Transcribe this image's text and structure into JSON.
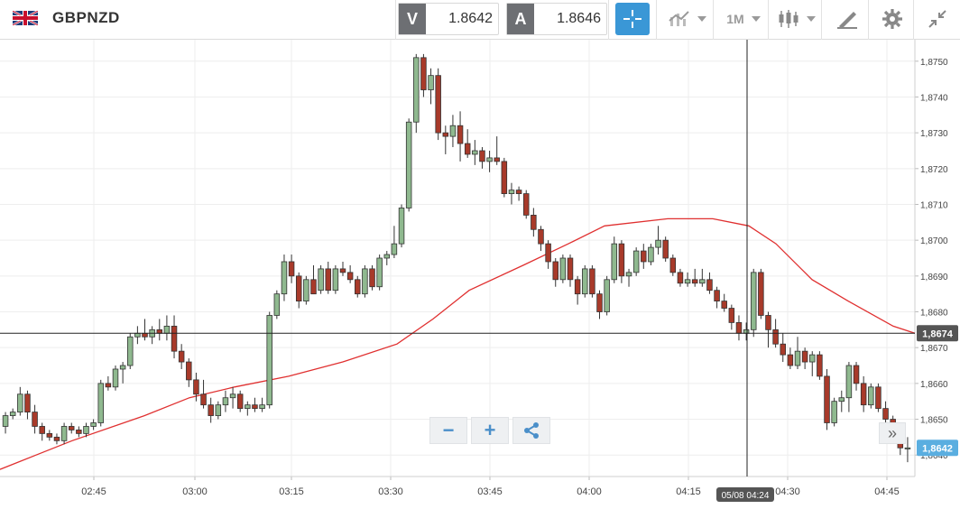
{
  "symbol": {
    "name": "GBPNZD",
    "flag_icon": "gb-nz-flag-icon"
  },
  "quote": {
    "bid_label": "V",
    "bid": "1.8642",
    "ask_label": "A",
    "ask": "1.8646"
  },
  "toolbar": {
    "crosshair_icon": "crosshair-icon",
    "chart_type_icon": "line-chart-icon",
    "timeframe": "1M",
    "candles_icon": "candlestick-icon",
    "draw_icon": "pen-ruler-icon",
    "settings_icon": "gear-icon",
    "collapse_icon": "collapse-arrows-icon"
  },
  "zoom": {
    "minus": "−",
    "plus": "+",
    "share_icon": "share-icon"
  },
  "scroll_right": "»",
  "chart_data": {
    "type": "candlestick",
    "y_ticks": [
      "1,8640",
      "1,8650",
      "1,8660",
      "1,8670",
      "1,8680",
      "1,8690",
      "1,8700",
      "1,8710",
      "1,8720",
      "1,8730",
      "1,8740",
      "1,8750"
    ],
    "x_ticks": [
      "02:45",
      "03:00",
      "03:15",
      "03:30",
      "03:45",
      "04:00",
      "04:15",
      "04:30",
      "04:45"
    ],
    "ylim": [
      1.8634,
      1.8756
    ],
    "crosshair_price": "1,8674",
    "crosshair_time": "05/08 04:24",
    "last_price": "1,8642",
    "colors": {
      "up": "#8fb98f",
      "down": "#a83a2a",
      "ma": "#e03030",
      "last": "#5aaee0",
      "crosshair_label": "#555555"
    },
    "candles": [
      [
        1.8648,
        1.8652,
        1.8646,
        1.8651
      ],
      [
        1.8651,
        1.8653,
        1.865,
        1.8652
      ],
      [
        1.8652,
        1.8659,
        1.8651,
        1.8657
      ],
      [
        1.8657,
        1.8658,
        1.865,
        1.8652
      ],
      [
        1.8652,
        1.8654,
        1.8646,
        1.8648
      ],
      [
        1.8648,
        1.8649,
        1.8644,
        1.8646
      ],
      [
        1.8646,
        1.8647,
        1.8644,
        1.8645
      ],
      [
        1.8645,
        1.8646,
        1.8643,
        1.8644
      ],
      [
        1.8644,
        1.8649,
        1.8643,
        1.8648
      ],
      [
        1.8648,
        1.8649,
        1.8646,
        1.8647
      ],
      [
        1.8647,
        1.8648,
        1.8645,
        1.8646
      ],
      [
        1.8646,
        1.8649,
        1.8645,
        1.8648
      ],
      [
        1.8648,
        1.865,
        1.8647,
        1.8649
      ],
      [
        1.8649,
        1.8661,
        1.8648,
        1.866
      ],
      [
        1.866,
        1.8662,
        1.8658,
        1.8659
      ],
      [
        1.8659,
        1.8665,
        1.8658,
        1.8664
      ],
      [
        1.8664,
        1.8666,
        1.866,
        1.8665
      ],
      [
        1.8665,
        1.8674,
        1.8664,
        1.8673
      ],
      [
        1.8673,
        1.8676,
        1.8671,
        1.8674
      ],
      [
        1.8674,
        1.8678,
        1.8672,
        1.8673
      ],
      [
        1.8673,
        1.8676,
        1.8671,
        1.8675
      ],
      [
        1.8675,
        1.8678,
        1.8672,
        1.8674
      ],
      [
        1.8674,
        1.8679,
        1.8672,
        1.8676
      ],
      [
        1.8676,
        1.8679,
        1.8667,
        1.8669
      ],
      [
        1.8669,
        1.8671,
        1.8664,
        1.8666
      ],
      [
        1.8666,
        1.8667,
        1.8659,
        1.8661
      ],
      [
        1.8661,
        1.8663,
        1.8655,
        1.8657
      ],
      [
        1.8657,
        1.8661,
        1.8653,
        1.8654
      ],
      [
        1.8654,
        1.8656,
        1.8649,
        1.8651
      ],
      [
        1.8651,
        1.8655,
        1.865,
        1.8654
      ],
      [
        1.8654,
        1.8658,
        1.8652,
        1.8656
      ],
      [
        1.8656,
        1.8659,
        1.8653,
        1.8657
      ],
      [
        1.8657,
        1.8658,
        1.8652,
        1.8653
      ],
      [
        1.8653,
        1.8655,
        1.8651,
        1.8654
      ],
      [
        1.8654,
        1.8656,
        1.8652,
        1.8653
      ],
      [
        1.8653,
        1.8656,
        1.8652,
        1.8654
      ],
      [
        1.8654,
        1.868,
        1.8653,
        1.8679
      ],
      [
        1.8679,
        1.8686,
        1.8678,
        1.8685
      ],
      [
        1.8685,
        1.8696,
        1.8683,
        1.8694
      ],
      [
        1.8694,
        1.8696,
        1.8688,
        1.869
      ],
      [
        1.869,
        1.8691,
        1.8681,
        1.8683
      ],
      [
        1.8683,
        1.869,
        1.8682,
        1.8689
      ],
      [
        1.8689,
        1.8693,
        1.8686,
        1.8685
      ],
      [
        1.8686,
        1.8693,
        1.8685,
        1.8692
      ],
      [
        1.8692,
        1.8694,
        1.8685,
        1.8686
      ],
      [
        1.8686,
        1.8693,
        1.8685,
        1.8692
      ],
      [
        1.8692,
        1.8694,
        1.869,
        1.8691
      ],
      [
        1.8691,
        1.8693,
        1.8688,
        1.8689
      ],
      [
        1.8689,
        1.869,
        1.8684,
        1.8685
      ],
      [
        1.8685,
        1.8693,
        1.8684,
        1.8692
      ],
      [
        1.8692,
        1.8693,
        1.8686,
        1.8687
      ],
      [
        1.8687,
        1.8696,
        1.8686,
        1.8695
      ],
      [
        1.8695,
        1.8697,
        1.8693,
        1.8696
      ],
      [
        1.8696,
        1.8704,
        1.8695,
        1.8699
      ],
      [
        1.8699,
        1.871,
        1.8698,
        1.8709
      ],
      [
        1.8709,
        1.8734,
        1.8708,
        1.8733
      ],
      [
        1.8733,
        1.8752,
        1.873,
        1.8751
      ],
      [
        1.8751,
        1.8752,
        1.874,
        1.8742
      ],
      [
        1.8742,
        1.8748,
        1.8738,
        1.8746
      ],
      [
        1.8746,
        1.8748,
        1.8728,
        1.873
      ],
      [
        1.873,
        1.8732,
        1.8724,
        1.8729
      ],
      [
        1.8729,
        1.8735,
        1.8726,
        1.8732
      ],
      [
        1.8732,
        1.8736,
        1.8722,
        1.8727
      ],
      [
        1.8727,
        1.8731,
        1.8723,
        1.8724
      ],
      [
        1.8724,
        1.8728,
        1.8721,
        1.8725
      ],
      [
        1.8725,
        1.8726,
        1.872,
        1.8722
      ],
      [
        1.8722,
        1.8725,
        1.8719,
        1.8723
      ],
      [
        1.8723,
        1.8729,
        1.8721,
        1.8722
      ],
      [
        1.8722,
        1.8723,
        1.8712,
        1.8713
      ],
      [
        1.8713,
        1.8716,
        1.871,
        1.8714
      ],
      [
        1.8714,
        1.8715,
        1.8711,
        1.8713
      ],
      [
        1.8713,
        1.8714,
        1.8706,
        1.8707
      ],
      [
        1.8707,
        1.8709,
        1.8701,
        1.8703
      ],
      [
        1.8703,
        1.8704,
        1.8697,
        1.8699
      ],
      [
        1.8699,
        1.87,
        1.8692,
        1.8694
      ],
      [
        1.8694,
        1.8695,
        1.8687,
        1.8689
      ],
      [
        1.8689,
        1.8696,
        1.8688,
        1.8695
      ],
      [
        1.8695,
        1.8696,
        1.8687,
        1.8689
      ],
      [
        1.8689,
        1.869,
        1.8682,
        1.8685
      ],
      [
        1.8685,
        1.8693,
        1.8684,
        1.8692
      ],
      [
        1.8692,
        1.8693,
        1.8684,
        1.8685
      ],
      [
        1.8685,
        1.8686,
        1.8678,
        1.868
      ],
      [
        1.868,
        1.869,
        1.8679,
        1.8689
      ],
      [
        1.8689,
        1.8701,
        1.8688,
        1.8699
      ],
      [
        1.8699,
        1.87,
        1.8688,
        1.869
      ],
      [
        1.869,
        1.8692,
        1.8687,
        1.8691
      ],
      [
        1.8691,
        1.8698,
        1.869,
        1.8697
      ],
      [
        1.8697,
        1.8699,
        1.8692,
        1.8694
      ],
      [
        1.8694,
        1.8699,
        1.8693,
        1.8698
      ],
      [
        1.8698,
        1.8704,
        1.8696,
        1.87
      ],
      [
        1.87,
        1.8701,
        1.8694,
        1.8695
      ],
      [
        1.8695,
        1.8696,
        1.869,
        1.8691
      ],
      [
        1.8691,
        1.8692,
        1.8687,
        1.8688
      ],
      [
        1.8688,
        1.8691,
        1.8687,
        1.8689
      ],
      [
        1.8689,
        1.8692,
        1.8687,
        1.8688
      ],
      [
        1.8688,
        1.8692,
        1.8687,
        1.8689
      ],
      [
        1.8689,
        1.8691,
        1.8685,
        1.8686
      ],
      [
        1.8686,
        1.8687,
        1.8681,
        1.8683
      ],
      [
        1.8683,
        1.8685,
        1.868,
        1.8681
      ],
      [
        1.8681,
        1.8682,
        1.8675,
        1.8677
      ],
      [
        1.8677,
        1.8679,
        1.8672,
        1.8674
      ],
      [
        1.8674,
        1.8677,
        1.8672,
        1.8675
      ],
      [
        1.8675,
        1.8692,
        1.8673,
        1.8691
      ],
      [
        1.8691,
        1.8692,
        1.8678,
        1.8679
      ],
      [
        1.8679,
        1.868,
        1.867,
        1.8675
      ],
      [
        1.8675,
        1.8678,
        1.867,
        1.8671
      ],
      [
        1.8671,
        1.8674,
        1.8666,
        1.8668
      ],
      [
        1.8668,
        1.867,
        1.8664,
        1.8665
      ],
      [
        1.8665,
        1.8673,
        1.8664,
        1.8669
      ],
      [
        1.8669,
        1.867,
        1.8664,
        1.8666
      ],
      [
        1.8666,
        1.8669,
        1.8662,
        1.8668
      ],
      [
        1.8668,
        1.8669,
        1.8661,
        1.8662
      ],
      [
        1.8662,
        1.8664,
        1.8647,
        1.8649
      ],
      [
        1.8649,
        1.8656,
        1.8648,
        1.8655
      ],
      [
        1.8655,
        1.8658,
        1.8652,
        1.8656
      ],
      [
        1.8656,
        1.8666,
        1.8652,
        1.8665
      ],
      [
        1.8665,
        1.8666,
        1.8658,
        1.866
      ],
      [
        1.866,
        1.8662,
        1.8652,
        1.8654
      ],
      [
        1.8654,
        1.866,
        1.8653,
        1.8659
      ],
      [
        1.8659,
        1.866,
        1.8652,
        1.8653
      ],
      [
        1.8653,
        1.8655,
        1.8648,
        1.865
      ],
      [
        1.865,
        1.8651,
        1.8646,
        1.8647
      ],
      [
        1.8646,
        1.8647,
        1.864,
        1.8642
      ],
      [
        1.8642,
        1.8645,
        1.8638,
        1.8642
      ]
    ],
    "ma": [
      [
        1.8636,
        0
      ],
      [
        1.864,
        40
      ],
      [
        1.8644,
        80
      ],
      [
        1.8651,
        160
      ],
      [
        1.8656,
        210
      ],
      [
        1.8659,
        260
      ],
      [
        1.8662,
        320
      ],
      [
        1.8666,
        380
      ],
      [
        1.8671,
        440
      ],
      [
        1.8678,
        480
      ],
      [
        1.8686,
        520
      ],
      [
        1.8693,
        580
      ],
      [
        1.8699,
        630
      ],
      [
        1.8704,
        670
      ],
      [
        1.8706,
        740
      ],
      [
        1.8706,
        790
      ],
      [
        1.8704,
        830
      ],
      [
        1.8699,
        860
      ],
      [
        1.8689,
        900
      ],
      [
        1.8683,
        940
      ],
      [
        1.8676,
        990
      ],
      [
        1.8674,
        1014
      ]
    ]
  }
}
